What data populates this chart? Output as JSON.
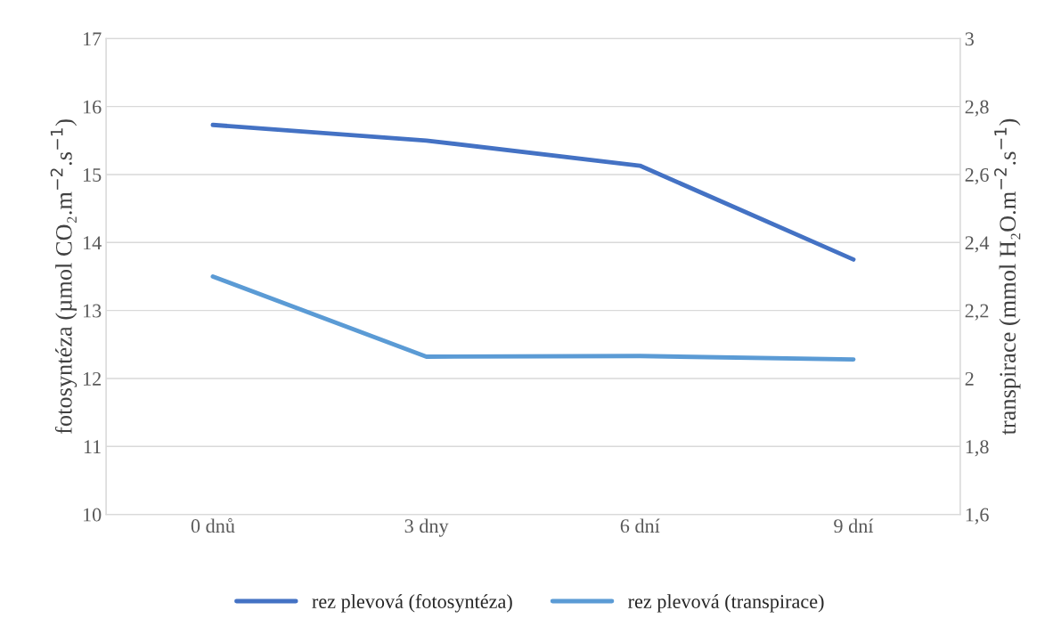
{
  "chart_data": {
    "type": "line",
    "categories": [
      "0 dnů",
      "3 dny",
      "6 dní",
      "9 dní"
    ],
    "ylabel": "fotosyntéza (µmol CO₂.m$^{−2}$.s$^{−1}$)",
    "y2label": "transpirace (mmol H₂O.m$^{−2}$.s$^{−1}$)",
    "series": [
      {
        "name": "rez plevová (fotosyntéza)",
        "color": "#4472c4",
        "values": [
          15.73,
          15.5,
          15.13,
          13.75
        ]
      },
      {
        "name": "rez plevová (transpirace)",
        "color": "#5b9bd5",
        "values": [
          2.3,
          2.064,
          2.066,
          2.056
        ],
        "axis": "y2"
      }
    ],
    "ylim": [
      10,
      17
    ],
    "yticks": [
      10,
      11,
      12,
      13,
      14,
      15,
      16,
      17
    ],
    "y2lim": [
      1.6,
      3
    ],
    "y2ticks": [
      {
        "value": 1.6,
        "label": "1,6"
      },
      {
        "value": 1.8,
        "label": "1,8"
      },
      2,
      {
        "value": 2.2,
        "label": "2,2"
      },
      {
        "value": 2.4,
        "label": "2,4"
      },
      {
        "value": 2.6,
        "label": "2,6"
      },
      {
        "value": 2.8,
        "label": "2,8"
      },
      3
    ],
    "grid": "y",
    "legend": "bottom",
    "line_style": "solid",
    "marker": "none"
  }
}
